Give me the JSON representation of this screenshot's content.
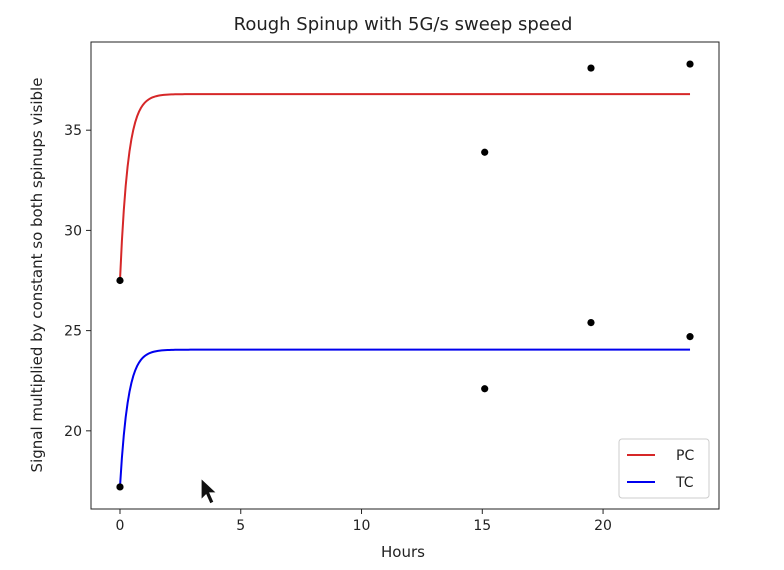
{
  "chart_data": {
    "type": "line",
    "title": "Rough Spinup with 5G/s sweep speed",
    "xlabel": "Hours",
    "ylabel": "Signal multiplied by constant so both spinups visible",
    "xlim": [
      -1.2,
      24.8
    ],
    "ylim": [
      16.1,
      39.4
    ],
    "xticks": [
      0,
      5,
      10,
      15,
      20
    ],
    "yticks": [
      20,
      25,
      30,
      35
    ],
    "legend_position": "lower-right",
    "series": [
      {
        "name": "PC",
        "color": "#d62728",
        "kind": "fit",
        "x_range": [
          0,
          23.6
        ],
        "initial": 27.5,
        "plateau": 36.8,
        "rate_per_hour": 3.0
      },
      {
        "name": "TC",
        "color": "#0000ee",
        "kind": "fit",
        "x_range": [
          0,
          23.6
        ],
        "initial": 17.2,
        "plateau": 24.05,
        "rate_per_hour": 3.0
      }
    ],
    "points": [
      {
        "group": "PC",
        "x": 0.0,
        "y": 27.5
      },
      {
        "group": "PC",
        "x": 15.1,
        "y": 33.9
      },
      {
        "group": "PC",
        "x": 19.5,
        "y": 38.1
      },
      {
        "group": "PC",
        "x": 23.6,
        "y": 38.3
      },
      {
        "group": "TC",
        "x": 0.0,
        "y": 17.2
      },
      {
        "group": "TC",
        "x": 15.1,
        "y": 22.1
      },
      {
        "group": "TC",
        "x": 19.5,
        "y": 25.4
      },
      {
        "group": "TC",
        "x": 23.6,
        "y": 24.7
      }
    ]
  }
}
